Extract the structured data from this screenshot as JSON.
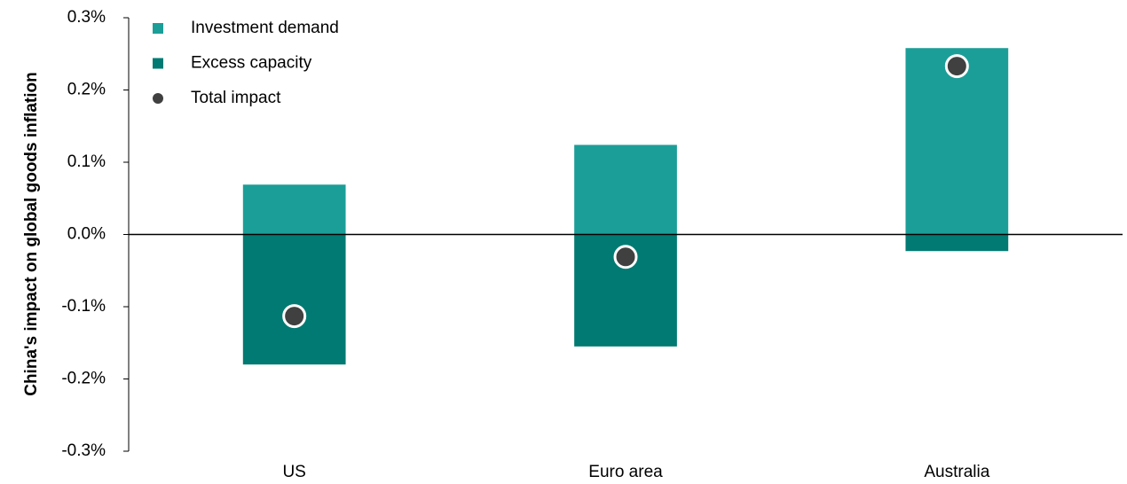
{
  "chart_data": {
    "type": "bar",
    "ylabel": "China's impact on global goods inflation",
    "categories": [
      "US",
      "Euro area",
      "Australia"
    ],
    "series": [
      {
        "name": "Investment demand",
        "color": "#1c9e98",
        "values": [
          0.069,
          0.124,
          0.258
        ]
      },
      {
        "name": "Excess capacity",
        "color": "#007a72",
        "values": [
          -0.18,
          -0.155,
          -0.023
        ]
      },
      {
        "name": "Total impact",
        "type": "scatter",
        "color": "#404040",
        "values": [
          -0.113,
          -0.031,
          0.233
        ]
      }
    ],
    "ylim": [
      -0.3,
      0.3
    ],
    "yticks": [
      {
        "value": 0.3,
        "label": "0.3%"
      },
      {
        "value": 0.2,
        "label": "0.2%"
      },
      {
        "value": 0.1,
        "label": "0.1%"
      },
      {
        "value": 0.0,
        "label": "0.0%"
      },
      {
        "value": -0.1,
        "label": "-0.1%"
      },
      {
        "value": -0.2,
        "label": "-0.2%"
      },
      {
        "value": -0.3,
        "label": "-0.3%"
      }
    ],
    "legend": "upper left"
  }
}
